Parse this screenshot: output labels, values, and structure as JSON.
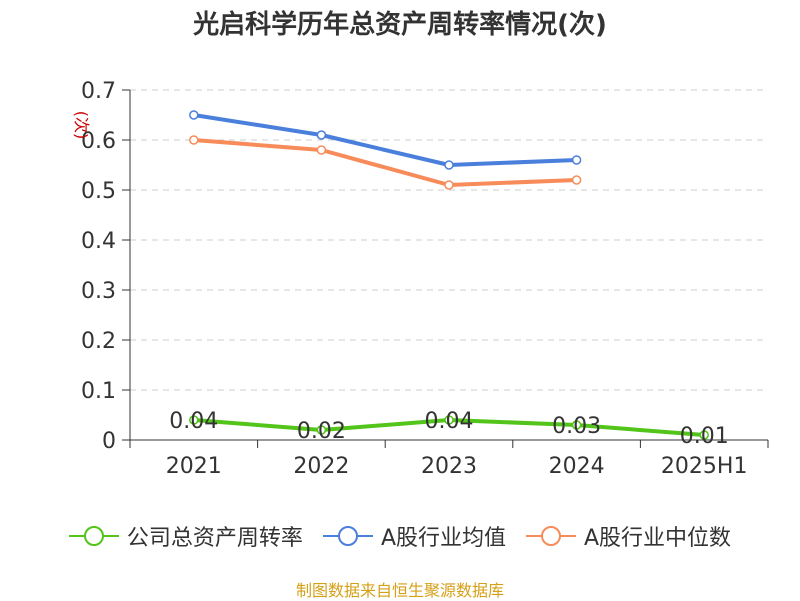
{
  "chart_data": {
    "type": "line",
    "title": "光启科学历年总资产周转率情况(次)",
    "ylabel": "(次)",
    "xlabel": "",
    "categories": [
      "2021",
      "2022",
      "2023",
      "2024",
      "2025H1"
    ],
    "ylim": [
      0,
      0.7
    ],
    "yticks": [
      "0",
      "0.1",
      "0.2",
      "0.3",
      "0.4",
      "0.5",
      "0.6",
      "0.7"
    ],
    "grid": "horizontal dashed",
    "legend_position": "bottom",
    "series": [
      {
        "name": "公司总资产周转率",
        "color": "#52c41a",
        "values": [
          0.04,
          0.02,
          0.04,
          0.03,
          0.01
        ],
        "labels": [
          "0.04",
          "0.02",
          "0.04",
          "0.03",
          "0.01"
        ]
      },
      {
        "name": "A股行业均值",
        "color": "#4a7fdc",
        "values": [
          0.65,
          0.61,
          0.55,
          0.56,
          null
        ]
      },
      {
        "name": "A股行业中位数",
        "color": "#f78c5a",
        "values": [
          0.6,
          0.58,
          0.51,
          0.52,
          null
        ]
      }
    ]
  },
  "source": "制图数据来自恒生聚源数据库"
}
